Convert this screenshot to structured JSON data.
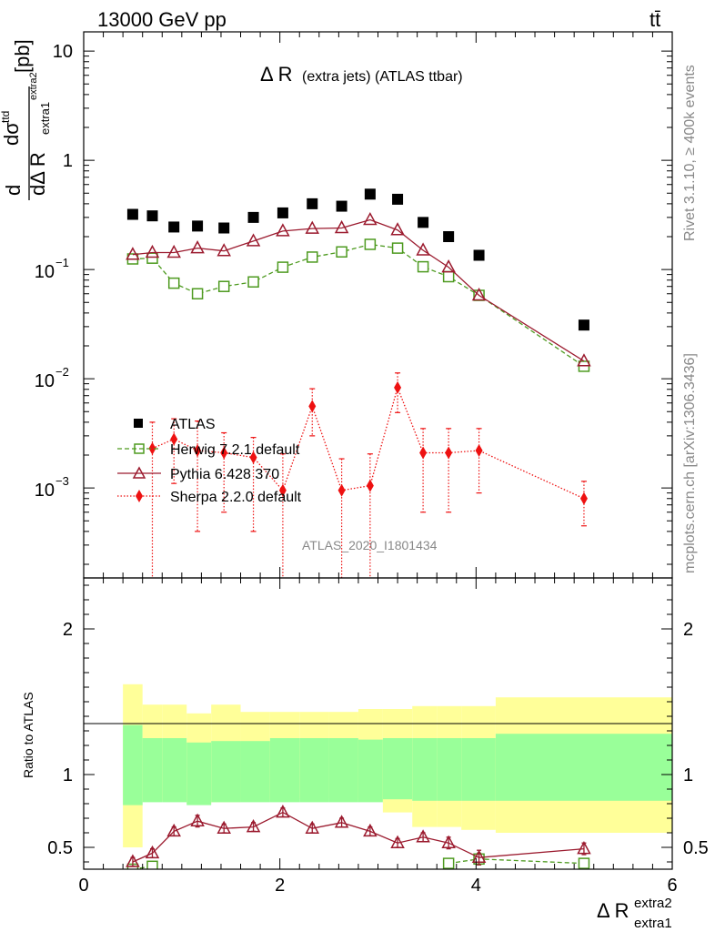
{
  "header": {
    "energy": "13000 GeV pp",
    "process": "tt̄"
  },
  "side": {
    "rivet": "Rivet 3.1.10, ≥ 400k events",
    "source": "mcplots.cern.ch [arXiv:1306.3436]"
  },
  "colors": {
    "atlas": "#000000",
    "herwig": "#4d9a1f",
    "pythia": "#9b1a2e",
    "sherpa": "#ee1111",
    "band_outer": "#ffff99",
    "band_inner": "#99ff99"
  },
  "chart_data": [
    {
      "type": "scatter",
      "title": "Δ R (extra jets) (ATLAS ttbar)",
      "title_main": "Δ R",
      "title_sub": "(extra jets) (ATLAS ttbar)",
      "ylabel": "dσ^{ttd} / dΔ R_{extra1}^{extra2} [pb]",
      "ylabel_parts": {
        "d1": "d",
        "sigma": "dσ",
        "sigsup": "ttd",
        "d2": "dΔ R",
        "sub": "extra1",
        "sup": "extra2",
        "unit": "[pb]"
      },
      "yscale": "log",
      "ylim": [
        0.00015,
        15
      ],
      "xlim": [
        0,
        6
      ],
      "ytick_labels": [
        {
          "value": 10,
          "mantissa": "10",
          "exp": ""
        },
        {
          "value": 1,
          "mantissa": "1",
          "exp": ""
        },
        {
          "value": 0.1,
          "mantissa": "10",
          "exp": "−1"
        },
        {
          "value": 0.01,
          "mantissa": "10",
          "exp": "−2"
        },
        {
          "value": 0.001,
          "mantissa": "10",
          "exp": "−3"
        }
      ],
      "watermark": "ATLAS_2020_I1801434",
      "x": [
        0.5,
        0.7,
        0.92,
        1.16,
        1.43,
        1.73,
        2.03,
        2.33,
        2.63,
        2.92,
        3.2,
        3.46,
        3.72,
        4.03,
        5.1
      ],
      "series": [
        {
          "name": "ATLAS",
          "marker": "square",
          "values": [
            0.32,
            0.31,
            0.245,
            0.25,
            0.24,
            0.3,
            0.33,
            0.4,
            0.38,
            0.49,
            0.44,
            0.27,
            0.2,
            0.135,
            0.031
          ]
        },
        {
          "name": "Herwig 7.2.1 default",
          "marker": "open-square",
          "line": "dashed",
          "values": [
            0.125,
            0.127,
            0.075,
            0.06,
            0.07,
            0.077,
            0.105,
            0.13,
            0.145,
            0.17,
            0.157,
            0.106,
            0.086,
            0.058,
            0.013
          ]
        },
        {
          "name": "Pythia 6.428 370",
          "marker": "open-triangle",
          "line": "solid",
          "values": [
            0.137,
            0.143,
            0.143,
            0.157,
            0.148,
            0.182,
            0.225,
            0.237,
            0.24,
            0.285,
            0.23,
            0.15,
            0.105,
            0.058,
            0.0145
          ]
        },
        {
          "name": "Sherpa 2.2.0 default",
          "marker": "diamond",
          "line": "dotted",
          "values": [
            null,
            0.0023,
            0.0028,
            0.0022,
            0.0021,
            0.0019,
            0.00095,
            0.0056,
            0.00095,
            0.00105,
            0.0083,
            0.0021,
            0.0021,
            0.0022,
            0.0008
          ],
          "err_up": [
            null,
            0.0017,
            0.0015,
            0.0019,
            0.0011,
            0.001,
            0.0011,
            0.0025,
            0.0009,
            0.001,
            0.003,
            0.0014,
            0.0014,
            0.0013,
            0.00035
          ],
          "err_down": [
            null,
            0.0022,
            0.0017,
            0.0018,
            0.0015,
            0.0015,
            0.0009,
            0.0026,
            0.0009,
            0.001,
            0.0034,
            0.0015,
            0.0015,
            0.0013,
            0.00035
          ]
        }
      ]
    },
    {
      "type": "line",
      "ylabel": "Ratio to ATLAS",
      "xlabel": "Δ R_{extra1}^{extra2}",
      "xlabel_parts": {
        "main": "Δ R",
        "sup": "extra2",
        "sub": "extra1"
      },
      "xlim": [
        0,
        6
      ],
      "ylim": [
        0.35,
        2.35
      ],
      "xtick_labels": [
        "0",
        "2",
        "4",
        "6"
      ],
      "ytick_labels": [
        "0.5",
        "1",
        "2"
      ],
      "bins": [
        0.4,
        0.6,
        0.8,
        1.05,
        1.3,
        1.6,
        1.9,
        2.2,
        2.5,
        2.8,
        3.05,
        3.35,
        3.6,
        3.85,
        4.2,
        6.0
      ],
      "band_outer_up": [
        1.62,
        1.48,
        1.48,
        1.42,
        1.48,
        1.43,
        1.43,
        1.43,
        1.43,
        1.45,
        1.45,
        1.47,
        1.47,
        1.47,
        1.53
      ],
      "band_outer_down": [
        0.5,
        0.82,
        0.82,
        0.8,
        0.81,
        0.83,
        0.83,
        0.84,
        0.84,
        0.82,
        0.74,
        0.64,
        0.64,
        0.62,
        0.6
      ],
      "band_inner_up": [
        1.34,
        1.25,
        1.25,
        1.22,
        1.23,
        1.23,
        1.25,
        1.25,
        1.25,
        1.24,
        1.25,
        1.25,
        1.25,
        1.25,
        1.28
      ],
      "band_inner_down": [
        0.79,
        0.81,
        0.81,
        0.79,
        0.81,
        0.81,
        0.81,
        0.81,
        0.81,
        0.81,
        0.83,
        0.82,
        0.82,
        0.82,
        0.82
      ],
      "x": [
        0.5,
        0.7,
        0.92,
        1.16,
        1.43,
        1.73,
        2.03,
        2.33,
        2.63,
        2.92,
        3.2,
        3.46,
        3.72,
        4.03,
        5.1
      ],
      "series": [
        {
          "name": "Herwig 7.2.1 default",
          "marker": "open-square",
          "line": "dashed",
          "values": [
            0.35,
            0.37,
            null,
            null,
            null,
            null,
            null,
            null,
            null,
            null,
            null,
            null,
            0.39,
            0.42,
            0.39
          ],
          "err": [
            0.01,
            0.01,
            0,
            0,
            0,
            0,
            0,
            0,
            0,
            0,
            0,
            0,
            0.02,
            0.04,
            0.02
          ]
        },
        {
          "name": "Pythia 6.428 370",
          "marker": "open-triangle",
          "line": "solid",
          "values": [
            0.4,
            0.46,
            0.61,
            0.68,
            0.63,
            0.64,
            0.74,
            0.63,
            0.67,
            0.61,
            0.53,
            0.57,
            0.53,
            0.43,
            0.49
          ],
          "err": [
            0.03,
            0.03,
            0.03,
            0.04,
            0.03,
            0.03,
            0.03,
            0.03,
            0.03,
            0.03,
            0.03,
            0.03,
            0.04,
            0.05,
            0.04
          ]
        }
      ]
    }
  ]
}
